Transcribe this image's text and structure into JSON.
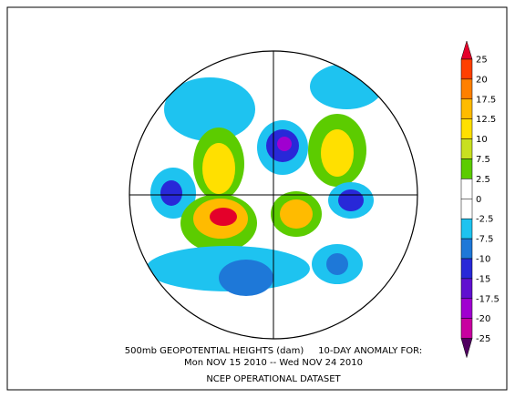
{
  "caption": {
    "line1": "500mb GEOPOTENTIAL HEIGHTS (dam)     10-DAY ANOMALY FOR:",
    "line2": "Mon NOV 15 2010 -- Wed NOV 24 2010",
    "line3": "NCEP OPERATIONAL DATASET"
  },
  "colorbar": {
    "labels": [
      "25",
      "20",
      "17.5",
      "12.5",
      "10",
      "7.5",
      "2.5",
      "0",
      "-2.5",
      "-7.5",
      "-10",
      "-15",
      "-17.5",
      "-20",
      "-25"
    ],
    "colors": [
      "#e4002a",
      "#ff3f00",
      "#ff8000",
      "#ffbb00",
      "#ffe000",
      "#c8e020",
      "#5ccc00",
      "#ffffff",
      "#ffffff",
      "#1ec3f0",
      "#1e78d8",
      "#2828d8",
      "#6010d0",
      "#a000d0",
      "#c800a0",
      "#500060"
    ]
  }
}
